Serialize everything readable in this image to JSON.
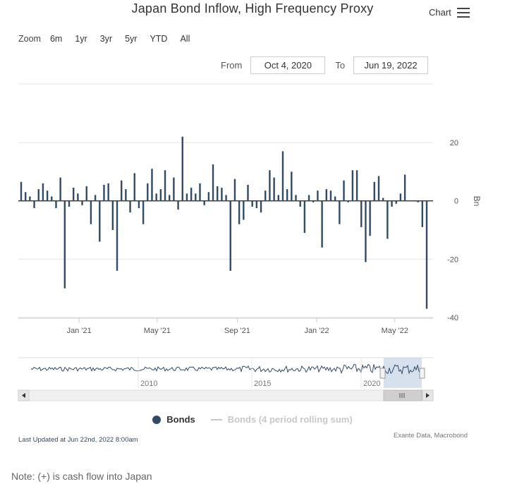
{
  "title": "Japan Bond Inflow, High Frequency Proxy",
  "menu": {
    "label": "Chart",
    "icon": "hamburger-icon"
  },
  "zoom": {
    "label": "Zoom",
    "buttons": [
      "6m",
      "1yr",
      "3yr",
      "5yr",
      "YTD",
      "All"
    ]
  },
  "range": {
    "from_label": "From",
    "from_value": "Oct 4, 2020",
    "to_label": "To",
    "to_value": "Jun 19, 2022"
  },
  "colors": {
    "series": "#2f4b69",
    "navigator_mask": "#c6d3e6",
    "grid": "#e6e6e6"
  },
  "chart_data": {
    "type": "bar",
    "title": "Japan Bond Inflow, High Frequency Proxy",
    "ylabel": "Bn",
    "ylim": [
      -40,
      20
    ],
    "yticks": [
      20,
      0,
      -20,
      -40
    ],
    "x_start": "2020-10-04",
    "x_end": "2022-06-19",
    "xticks": [
      {
        "label": "Jan '21",
        "date": "2021-01-01"
      },
      {
        "label": "May '21",
        "date": "2021-05-01"
      },
      {
        "label": "Sep '21",
        "date": "2021-09-01"
      },
      {
        "label": "Jan '22",
        "date": "2022-01-01"
      },
      {
        "label": "May '22",
        "date": "2022-05-01"
      }
    ],
    "series": [
      {
        "name": "Bonds",
        "frequency": "weekly",
        "values": [
          6.5,
          3,
          1.5,
          -2.5,
          4,
          6,
          3.5,
          1.5,
          -2.5,
          8,
          -30,
          -2,
          4.5,
          2.5,
          -1.5,
          5,
          -8,
          2,
          -14,
          5.5,
          6,
          -10,
          -24,
          7,
          4,
          -4,
          9.5,
          -2.5,
          -8,
          6,
          11,
          2.5,
          4,
          10.5,
          2,
          8,
          -3,
          22,
          2.5,
          4.5,
          2.5,
          6,
          -1.5,
          3,
          12.5,
          5,
          4.5,
          2,
          -24,
          7.5,
          -8,
          -6.5,
          5.5,
          -2,
          -2.5,
          -4,
          3.5,
          10.5,
          8,
          2,
          17,
          4,
          10,
          2,
          -2,
          -11,
          2,
          -0.5,
          3.5,
          -16,
          4,
          3.5,
          1.5,
          -8,
          7,
          -0.5,
          10.5,
          10.5,
          -9,
          -21,
          -12,
          6.5,
          8.5,
          1,
          -13,
          -2,
          -1,
          2.5,
          9,
          0,
          0,
          -0.5,
          -9,
          -37
        ]
      }
    ],
    "legend": [
      {
        "label": "Bonds",
        "visible": true
      },
      {
        "label": "Bonds (4 period rolling sum)",
        "visible": false
      }
    ],
    "legend_position": "bottom-center",
    "navigator": {
      "xticks": [
        "2010",
        "2015",
        "2020"
      ]
    }
  },
  "footer": {
    "updated": "Last Updated at Jun 22nd, 2022 8:00am",
    "source": "Exante Data, Macrobond",
    "note": "Note: (+) is cash flow into Japan"
  }
}
